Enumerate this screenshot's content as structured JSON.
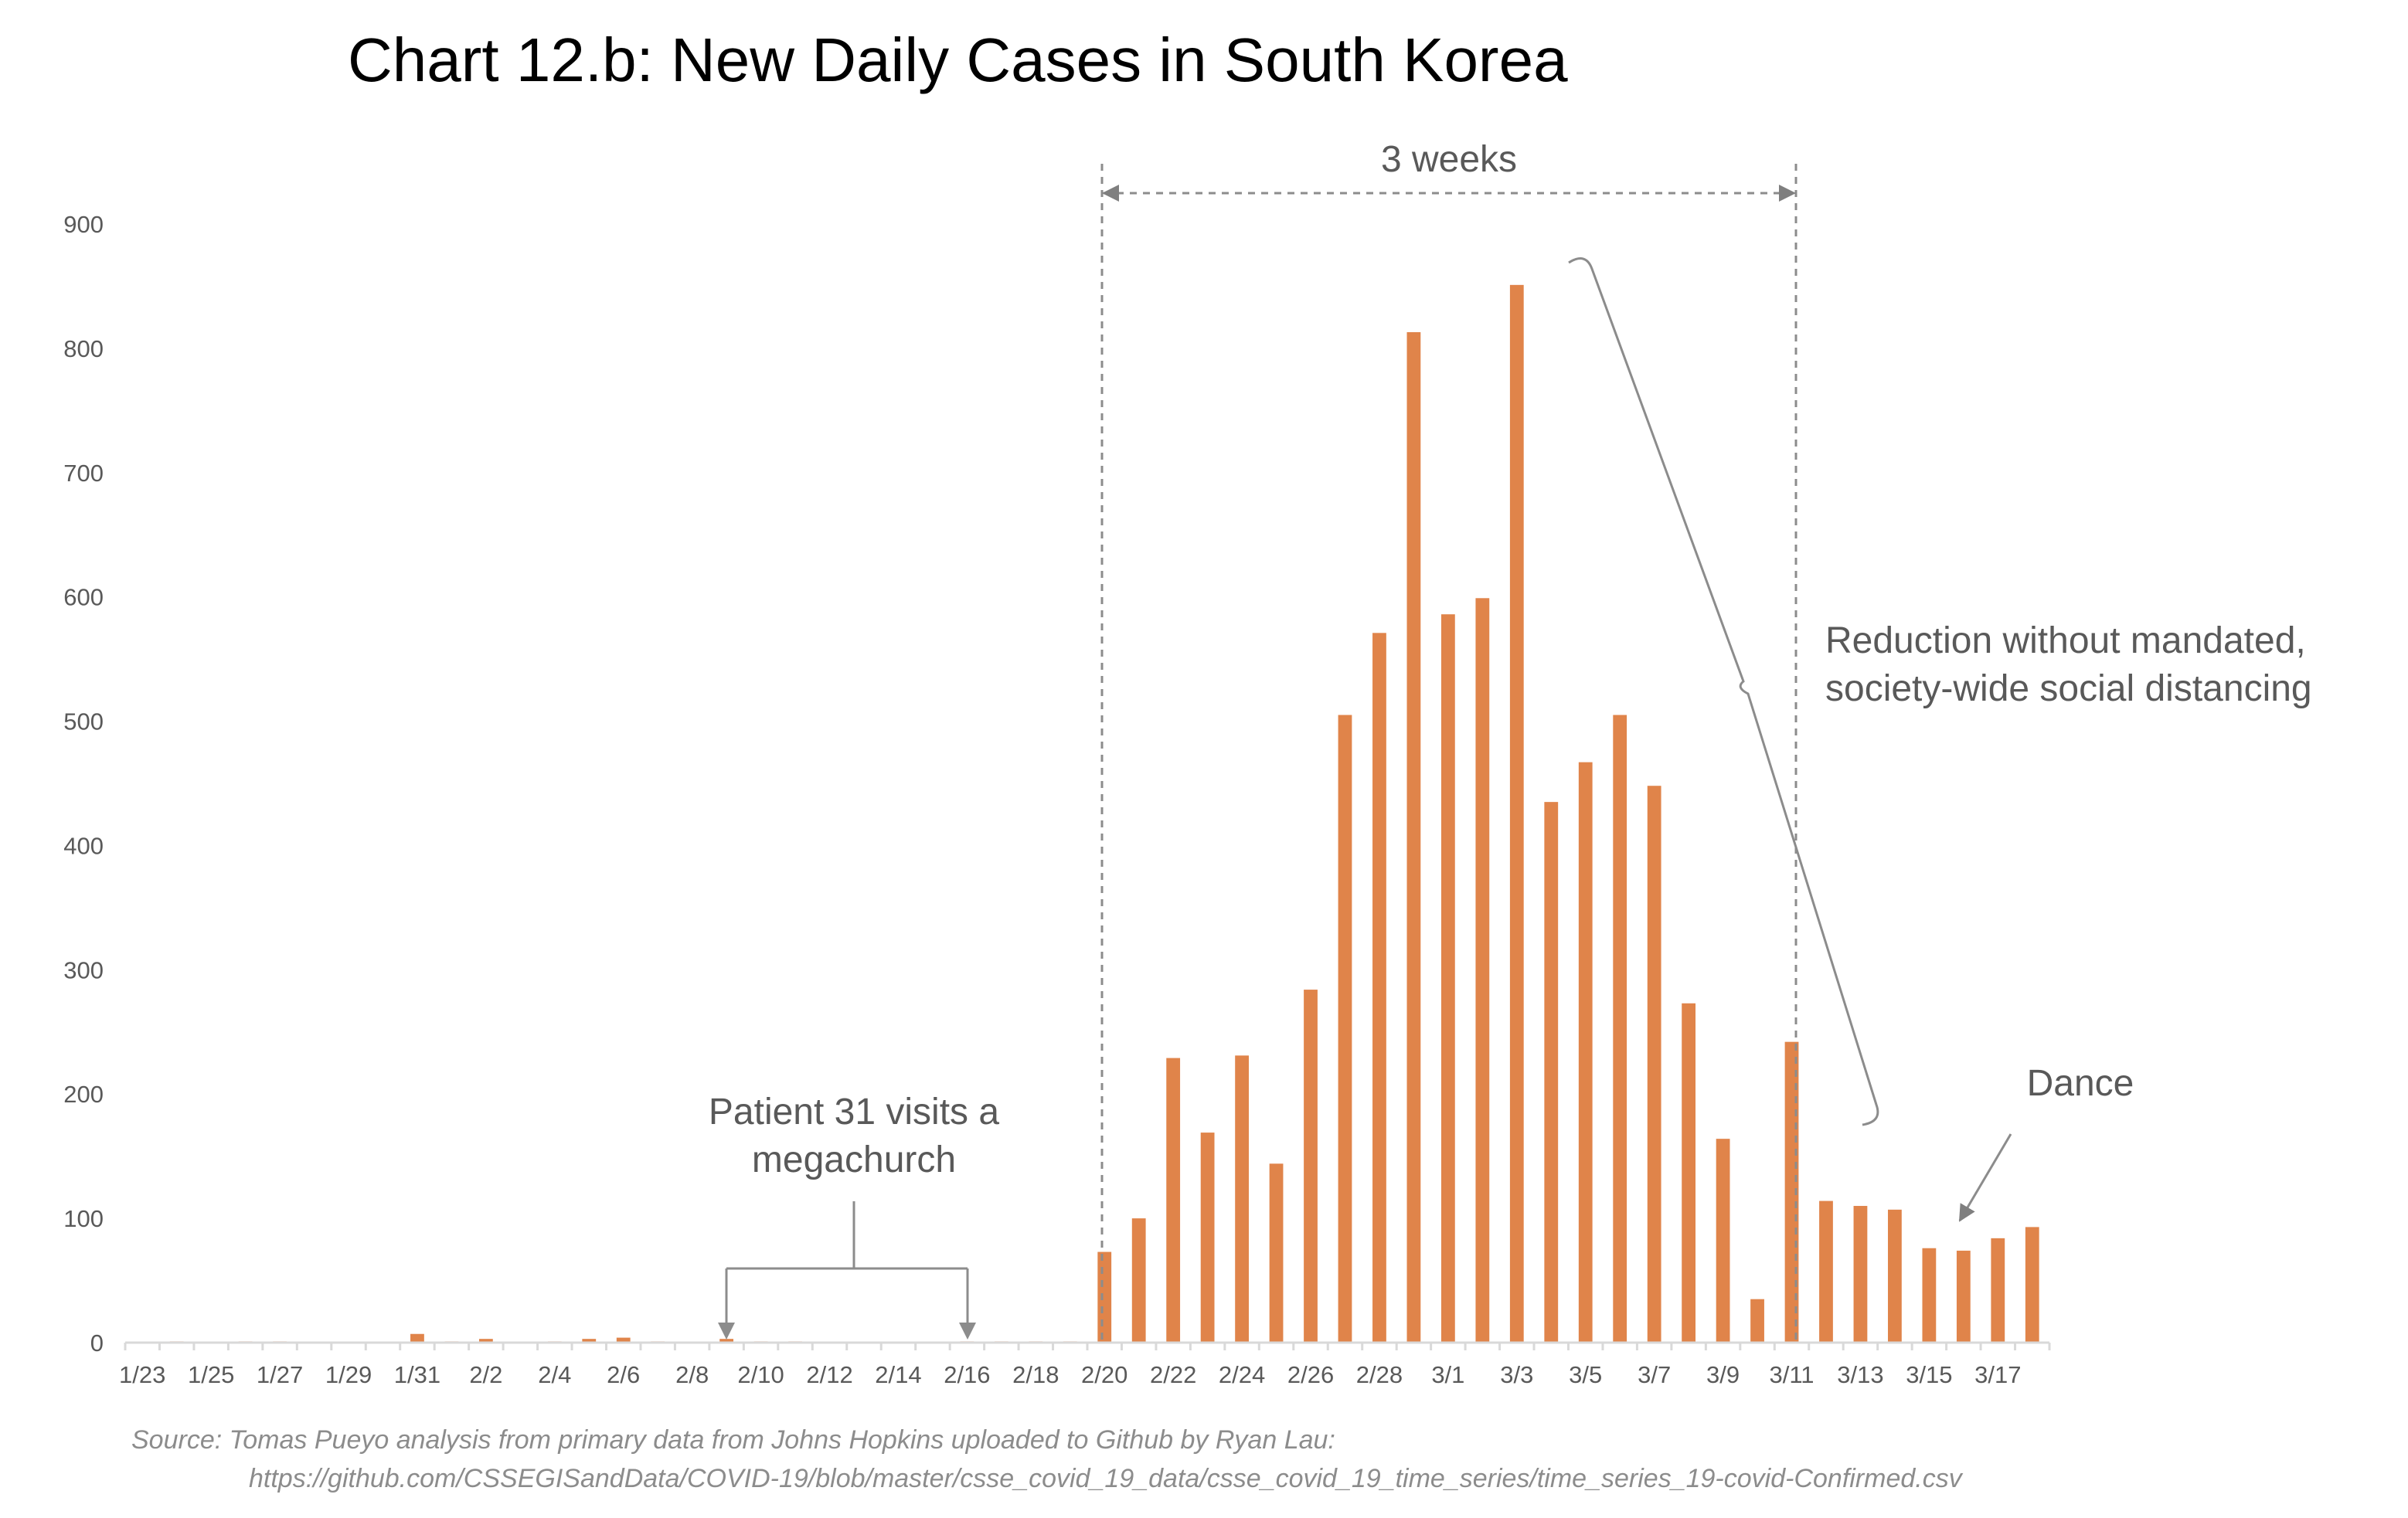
{
  "chart_data": {
    "type": "bar",
    "title": "Chart 12.b: New Daily Cases in South Korea",
    "xlabel": "",
    "ylabel": "",
    "ylim": [
      0,
      900
    ],
    "yticks": [
      "0",
      "100",
      "200",
      "300",
      "400",
      "500",
      "600",
      "700",
      "800",
      "900"
    ],
    "grid": false,
    "bar_color": "#E0844A",
    "categories": [
      "1/23",
      "1/24",
      "1/25",
      "1/26",
      "1/27",
      "1/28",
      "1/29",
      "1/30",
      "1/31",
      "2/1",
      "2/2",
      "2/3",
      "2/4",
      "2/5",
      "2/6",
      "2/7",
      "2/8",
      "2/9",
      "2/10",
      "2/11",
      "2/12",
      "2/13",
      "2/14",
      "2/15",
      "2/16",
      "2/17",
      "2/18",
      "2/19",
      "2/20",
      "2/21",
      "2/22",
      "2/23",
      "2/24",
      "2/25",
      "2/26",
      "2/27",
      "2/28",
      "2/29",
      "3/1",
      "3/2",
      "3/3",
      "3/4",
      "3/5",
      "3/6",
      "3/7",
      "3/8",
      "3/9",
      "3/10",
      "3/11",
      "3/12",
      "3/13",
      "3/14",
      "3/15",
      "3/16",
      "3/17",
      "3/18"
    ],
    "xtick_labels": [
      "1/23",
      "1/25",
      "1/27",
      "1/29",
      "1/31",
      "2/2",
      "2/4",
      "2/6",
      "2/8",
      "2/10",
      "2/12",
      "2/14",
      "2/16",
      "2/18",
      "2/20",
      "2/22",
      "2/24",
      "2/26",
      "2/28",
      "3/1",
      "3/3",
      "3/5",
      "3/7",
      "3/9",
      "3/11",
      "3/13",
      "3/15",
      "3/17"
    ],
    "values": [
      0,
      1,
      0,
      1,
      1,
      0,
      0,
      0,
      7,
      1,
      3,
      0,
      1,
      3,
      4,
      1,
      0,
      3,
      1,
      1,
      0,
      0,
      0,
      0,
      1,
      1,
      1,
      1,
      73,
      100,
      229,
      169,
      231,
      144,
      284,
      505,
      571,
      813,
      586,
      599,
      851,
      435,
      467,
      505,
      448,
      273,
      164,
      35,
      242,
      114,
      110,
      107,
      76,
      74,
      84,
      93
    ],
    "annotations": {
      "three_weeks": "3 weeks",
      "reduction_line1": "Reduction without mandated,",
      "reduction_line2": "society-wide social distancing",
      "patient31_line1": "Patient 31 visits a",
      "patient31_line2": "megachurch",
      "dance": "Dance"
    },
    "source_line1": "Source: Tomas Pueyo analysis from primary data from Johns Hopkins uploaded to Github by Ryan Lau:",
    "source_line2": "https://github.com/CSSEGISandData/COVID-19/blob/master/csse_covid_19_data/csse_covid_19_time_series/time_series_19-covid-Confirmed.csv"
  }
}
